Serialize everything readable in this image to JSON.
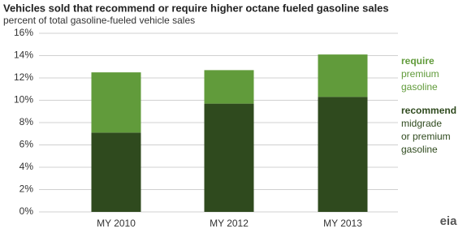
{
  "chart_data": {
    "type": "stacked_bar",
    "title": "Vehicles sold that recommend or require higher octane fueled gasoline sales",
    "subtitle": "percent of total gasoline-fueled  vehicle  sales",
    "categories": [
      "MY 2010",
      "MY 2012",
      "MY 2013"
    ],
    "series": [
      {
        "name": "recommend",
        "note": [
          "midgrade",
          "or premium",
          "gasoline"
        ],
        "color": "#2f4a1e",
        "values": [
          7.1,
          9.7,
          10.3
        ]
      },
      {
        "name": "require",
        "note": [
          "premium",
          "gasoline"
        ],
        "color": "#619b3b",
        "values": [
          5.4,
          3.0,
          3.8
        ]
      }
    ],
    "ylim": [
      0,
      16
    ],
    "yticks": [
      {
        "value": 0,
        "label": "0%"
      },
      {
        "value": 2,
        "label": "2%"
      },
      {
        "value": 4,
        "label": "4%"
      },
      {
        "value": 6,
        "label": "6%"
      },
      {
        "value": 8,
        "label": "8%"
      },
      {
        "value": 10,
        "label": "10%"
      },
      {
        "value": 12,
        "label": "12%"
      },
      {
        "value": 14,
        "label": "14%"
      },
      {
        "value": 16,
        "label": "16%"
      }
    ],
    "grid": true,
    "logo": "eia"
  }
}
